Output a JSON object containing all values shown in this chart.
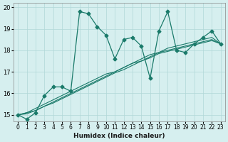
{
  "xlabel": "Humidex (Indice chaleur)",
  "ylabel": "",
  "x": [
    0,
    1,
    2,
    3,
    4,
    5,
    6,
    7,
    8,
    9,
    10,
    11,
    12,
    13,
    14,
    15,
    16,
    17,
    18,
    19,
    20,
    21,
    22,
    23
  ],
  "y_main": [
    15.0,
    14.8,
    15.1,
    15.9,
    16.3,
    16.3,
    16.1,
    19.8,
    19.7,
    19.1,
    18.7,
    17.6,
    18.5,
    18.6,
    18.2,
    16.7,
    18.9,
    19.8,
    18.0,
    17.9,
    18.3,
    18.6,
    18.9,
    18.3
  ],
  "y_line1": [
    15.0,
    15.1,
    15.3,
    15.5,
    15.7,
    15.9,
    16.1,
    16.3,
    16.5,
    16.7,
    16.9,
    17.0,
    17.2,
    17.4,
    17.6,
    17.8,
    17.9,
    18.1,
    18.2,
    18.3,
    18.4,
    18.5,
    18.6,
    18.3
  ],
  "y_line2": [
    15.0,
    15.1,
    15.2,
    15.4,
    15.6,
    15.8,
    16.0,
    16.2,
    16.4,
    16.6,
    16.8,
    17.0,
    17.2,
    17.4,
    17.5,
    17.7,
    17.9,
    18.0,
    18.1,
    18.2,
    18.3,
    18.4,
    18.5,
    18.3
  ],
  "y_line3": [
    15.0,
    15.05,
    15.2,
    15.4,
    15.55,
    15.75,
    15.95,
    16.15,
    16.35,
    16.55,
    16.75,
    16.95,
    17.1,
    17.3,
    17.5,
    17.65,
    17.85,
    17.95,
    18.05,
    18.15,
    18.25,
    18.35,
    18.45,
    18.3
  ],
  "bg_color": "#d6efef",
  "line_color": "#1a7a6a",
  "grid_color": "#b0d8d8",
  "ylim": [
    14.7,
    20.2
  ],
  "xlim": [
    -0.5,
    23.5
  ],
  "yticks": [
    15,
    16,
    17,
    18,
    19,
    20
  ],
  "xtick_labels": [
    "0",
    "1",
    "2",
    "3",
    "4",
    "5",
    "6",
    "7",
    "8",
    "9",
    "10",
    "11",
    "12",
    "13",
    "14",
    "15",
    "16",
    "17",
    "18",
    "19",
    "20",
    "21",
    "22",
    "23"
  ]
}
